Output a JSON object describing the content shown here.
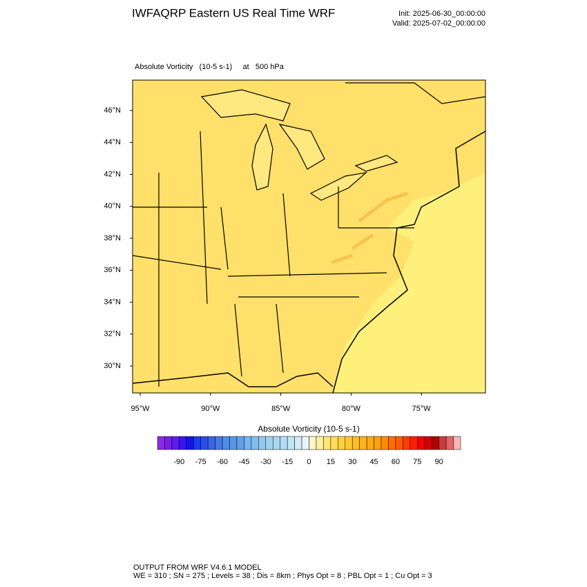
{
  "header": {
    "title": "IWFAQRP Eastern US Real Time WRF",
    "init": "Init: 2025-06-30_00:00:00",
    "valid": "Valid: 2025-07-02_00:00:00"
  },
  "plot_label": "Absolute Vorticity   (10-5 s-1)     at   500 hPa",
  "map": {
    "lat_labels": [
      "46°N",
      "44°N",
      "42°N",
      "40°N",
      "38°N",
      "36°N",
      "34°N",
      "32°N",
      "30°N"
    ],
    "lon_labels": [
      "95°W",
      "90°W",
      "85°W",
      "80°W",
      "75°W"
    ]
  },
  "colorbar": {
    "title": "Absolute Vorticity  (10-5 s-1)",
    "range": [
      -105,
      105
    ],
    "ticks": [
      -90,
      -75,
      -60,
      -45,
      -30,
      -15,
      0,
      15,
      30,
      45,
      60,
      75,
      90
    ],
    "colors": [
      "#8a2be2",
      "#7a1ee6",
      "#5a1ef0",
      "#3a14f0",
      "#1414e6",
      "#1e3cf0",
      "#2850e6",
      "#3c64e6",
      "#4678e6",
      "#508ce6",
      "#5a96e6",
      "#64a0e6",
      "#78b4f0",
      "#82beeb",
      "#96c8eb",
      "#a0d2eb",
      "#aad7f0",
      "#b4dcf0",
      "#c3e6f5",
      "#d2ebf5",
      "#e6f5fa",
      "#fff5c8",
      "#fff0a0",
      "#ffe678",
      "#ffdc5a",
      "#ffd23c",
      "#ffc832",
      "#ffbe28",
      "#ffb41e",
      "#ffaa14",
      "#ffa00a",
      "#ff8c00",
      "#ff6e00",
      "#ff5a00",
      "#ff3c00",
      "#ff1e00",
      "#f00000",
      "#d20000",
      "#b40000",
      "#c83c3c",
      "#e66464",
      "#ffb4b4"
    ]
  },
  "footer": {
    "line1": "OUTPUT FROM WRF V4.6.1 MODEL",
    "line2": "WE = 310 ; SN = 275 ; Levels = 38 ; Dis = 8km ; Phys Opt = 8 ; PBL Opt = 1 ; Cu Opt = 3"
  }
}
